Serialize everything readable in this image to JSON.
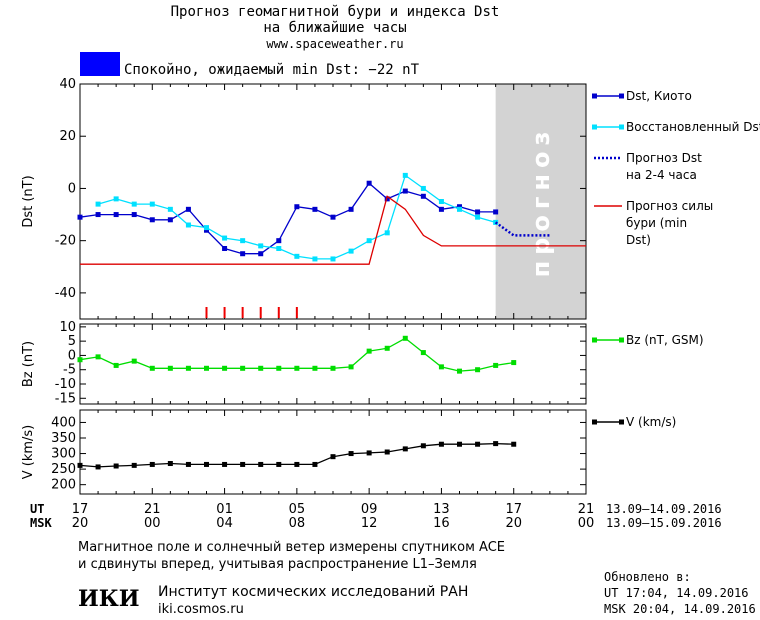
{
  "header": {
    "title_line1": "Прогноз геомагнитной бури и индекса Dst",
    "title_line2": "на ближайшие часы",
    "url": "www.spaceweather.ru",
    "status": "Спокойно, ожидаемый min Dst: −22 nT",
    "status_color": "#0000ff"
  },
  "forecast_band_label": "прогноз",
  "time_axis": {
    "ut_label": "UT",
    "msk_label": "MSK",
    "ut_ticks": [
      "17",
      "21",
      "01",
      "05",
      "09",
      "13",
      "17",
      "21"
    ],
    "msk_ticks": [
      "20",
      "00",
      "04",
      "08",
      "12",
      "16",
      "20",
      "00"
    ],
    "ut_range": "13.09–14.09.2016",
    "msk_range": "13.09–15.09.2016"
  },
  "footer": {
    "note_line1": "Магнитное поле и солнечный ветер измерены спутником ACE",
    "note_line2": "и сдвинуты вперед, учитывая распространение L1–Земля",
    "institute": "Институт космических исследований РАН",
    "site": "iki.cosmos.ru",
    "logo": "ИКИ",
    "updated_label": "Обновлено в:",
    "updated_ut": "UT  17:04, 14.09.2016",
    "updated_msk": "MSK 20:04, 14.09.2016"
  },
  "chart_data": [
    {
      "type": "line",
      "ylabel": "Dst (nT)",
      "ylim": [
        -50,
        40
      ],
      "yticks": [
        40,
        20,
        0,
        -20,
        -40
      ],
      "xlim": [
        0,
        28
      ],
      "forecast_region": [
        23,
        27
      ],
      "storm_markers": [
        7,
        8,
        9,
        10,
        11,
        12
      ],
      "series": [
        {
          "name": "Dst, Киото",
          "color": "#0000cc",
          "marker": "square",
          "x": [
            0,
            1,
            2,
            3,
            4,
            5,
            6,
            7,
            8,
            9,
            10,
            11,
            12,
            13,
            14,
            15,
            16,
            17,
            18,
            19,
            20,
            21,
            22,
            23
          ],
          "values": [
            -11,
            -10,
            -10,
            -10,
            -12,
            -12,
            -8,
            -16,
            -23,
            -25,
            -25,
            -20,
            -7,
            -8,
            -11,
            -8,
            2,
            -4,
            -1,
            -3,
            -8,
            -7,
            -9,
            -9
          ]
        },
        {
          "name": "Восстановленный Dst",
          "color": "#00e0ff",
          "marker": "square",
          "x": [
            1,
            2,
            3,
            4,
            5,
            6,
            7,
            8,
            9,
            10,
            11,
            12,
            13,
            14,
            15,
            16,
            17,
            18,
            19,
            20,
            21,
            22,
            23
          ],
          "values": [
            -6,
            -4,
            -6,
            -6,
            -8,
            -14,
            -15,
            -19,
            -20,
            -22,
            -23,
            -26,
            -27,
            -27,
            -24,
            -20,
            -17,
            5,
            0,
            -5,
            -8,
            -11,
            -13
          ]
        },
        {
          "name": "Прогноз Dst на 2-4 часа",
          "color": "#0000cc",
          "dotted": true,
          "x": [
            23,
            24,
            25,
            26
          ],
          "values": [
            -13,
            -18,
            -18,
            -18
          ]
        },
        {
          "name": "Прогноз силы бури (min Dst)",
          "color": "#dd0000",
          "x": [
            0,
            16,
            17,
            18,
            19,
            20,
            21,
            28
          ],
          "values": [
            -29,
            -29,
            -3,
            -8,
            -18,
            -22,
            -22,
            -22
          ]
        }
      ]
    },
    {
      "type": "line",
      "ylabel": "Bz (nT)",
      "ylim": [
        -17,
        11
      ],
      "yticks": [
        10,
        5,
        0,
        -5,
        -10,
        -15
      ],
      "xlim": [
        0,
        28
      ],
      "series": [
        {
          "name": "Bz (nT, GSM)",
          "color": "#00dd00",
          "marker": "square",
          "x": [
            0,
            1,
            2,
            3,
            4,
            5,
            6,
            7,
            8,
            9,
            10,
            11,
            12,
            13,
            14,
            15,
            16,
            17,
            18,
            19,
            20,
            21,
            22,
            23,
            24
          ],
          "values": [
            -1.5,
            -0.5,
            -3.5,
            -2,
            -4.5,
            -4.5,
            -4.5,
            -4.5,
            -4.5,
            -4.5,
            -4.5,
            -4.5,
            -4.5,
            -4.5,
            -4.5,
            -4,
            1.5,
            2.5,
            6,
            1,
            -4,
            -5.5,
            -5,
            -3.5,
            -2.5
          ]
        }
      ]
    },
    {
      "type": "line",
      "ylabel": "V (km/s)",
      "ylim": [
        170,
        440
      ],
      "yticks": [
        400,
        350,
        300,
        250,
        200
      ],
      "xlim": [
        0,
        28
      ],
      "series": [
        {
          "name": "V (km/s)",
          "color": "#000000",
          "marker": "square",
          "x": [
            0,
            1,
            2,
            3,
            4,
            5,
            6,
            7,
            8,
            9,
            10,
            11,
            12,
            13,
            14,
            15,
            16,
            17,
            18,
            19,
            20,
            21,
            22,
            23,
            24
          ],
          "values": [
            262,
            257,
            260,
            262,
            265,
            268,
            265,
            265,
            265,
            265,
            265,
            265,
            265,
            265,
            290,
            300,
            302,
            305,
            315,
            325,
            330,
            330,
            330,
            332,
            330
          ]
        }
      ]
    }
  ]
}
